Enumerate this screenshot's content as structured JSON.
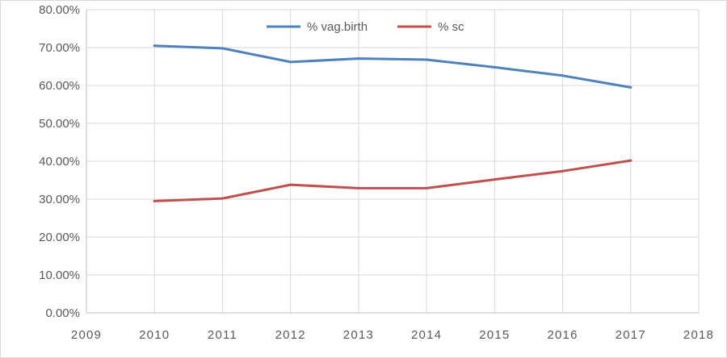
{
  "chart_data": {
    "type": "line",
    "x": [
      2010,
      2011,
      2012,
      2013,
      2014,
      2015,
      2016,
      2017
    ],
    "xlim": [
      2009,
      2018
    ],
    "xticks": [
      "2009",
      "2010",
      "2011",
      "2012",
      "2013",
      "2014",
      "2015",
      "2016",
      "2017",
      "2018"
    ],
    "ylim": [
      0,
      0.8
    ],
    "yticks": [
      "0.00%",
      "10.00%",
      "20.00%",
      "30.00%",
      "40.00%",
      "50.00%",
      "60.00%",
      "70.00%",
      "80.00%"
    ],
    "grid": true,
    "legend_position": "top-center",
    "series": [
      {
        "name": "% vag.birth",
        "color": "#4f81bd",
        "values": [
          0.705,
          0.698,
          0.662,
          0.671,
          0.668,
          0.648,
          0.626,
          0.595
        ]
      },
      {
        "name": "% sc",
        "color": "#c0504d",
        "values": [
          0.295,
          0.302,
          0.338,
          0.329,
          0.329,
          0.352,
          0.374,
          0.402
        ]
      }
    ]
  }
}
